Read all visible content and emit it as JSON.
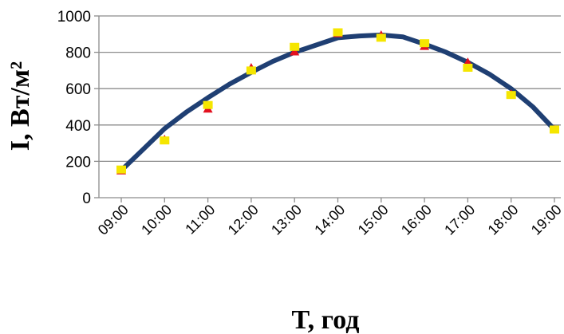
{
  "chart_data": {
    "type": "line",
    "xlabel": "T, год",
    "ylabel": "I, Вт/м²",
    "ylim": [
      0,
      1000
    ],
    "yticks": [
      0,
      200,
      400,
      600,
      800,
      1000
    ],
    "xticks": [
      "09:00",
      "10:00",
      "11:00",
      "12:00",
      "13:00",
      "14:00",
      "15:00",
      "16:00",
      "17:00",
      "18:00",
      "19:00"
    ],
    "grid": true,
    "series": [
      {
        "x": [
          9.0,
          9.5,
          10.0,
          10.5,
          11.0,
          11.5,
          12.0,
          12.5,
          13.0,
          13.5,
          14.0,
          14.5,
          15.0,
          15.5,
          16.0,
          16.5,
          17.0,
          17.5,
          18.0,
          18.5,
          19.0
        ],
        "y": [
          150,
          265,
          380,
          470,
          550,
          625,
          690,
          750,
          800,
          840,
          880,
          890,
          895,
          885,
          845,
          800,
          745,
          680,
          600,
          500,
          375
        ],
        "color": "#1f3f73"
      },
      {
        "x": [
          9.0,
          10.0,
          11.0,
          12.0,
          13.0,
          14.0,
          15.0,
          16.0,
          17.0,
          18.0,
          19.0
        ],
        "y": [
          150,
          320,
          490,
          715,
          805,
          905,
          895,
          835,
          745,
          570,
          375
        ],
        "color": "#e3101f",
        "marker": "triangle"
      },
      {
        "x": [
          9.0,
          10.0,
          11.0,
          12.0,
          13.0,
          14.0,
          15.0,
          16.0,
          17.0,
          18.0,
          19.0
        ],
        "y": [
          155,
          315,
          510,
          700,
          830,
          910,
          880,
          850,
          715,
          565,
          375
        ],
        "color": "#f5e600",
        "marker": "square"
      }
    ]
  }
}
